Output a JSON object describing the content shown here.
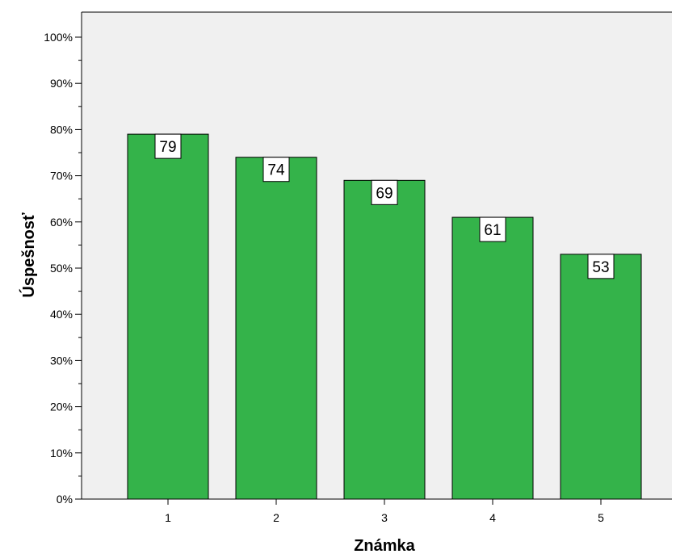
{
  "chart_data": {
    "type": "bar",
    "categories": [
      "1",
      "2",
      "3",
      "4",
      "5"
    ],
    "values": [
      79,
      74,
      69,
      61,
      53
    ],
    "data_labels": [
      "79",
      "74",
      "69",
      "61",
      "53"
    ],
    "xlabel": "Známka",
    "ylabel": "Úspešnosť",
    "ylim": [
      0,
      100
    ],
    "yticks": [
      "0%",
      "10%",
      "20%",
      "30%",
      "40%",
      "50%",
      "60%",
      "70%",
      "80%",
      "90%",
      "100%"
    ],
    "grid": false,
    "legend": "none",
    "colors": {
      "bar_fill": "#34b34a",
      "bar_stroke": "#000000",
      "plot_background": "#f0f0f0",
      "label_box": "#ffffff"
    }
  }
}
